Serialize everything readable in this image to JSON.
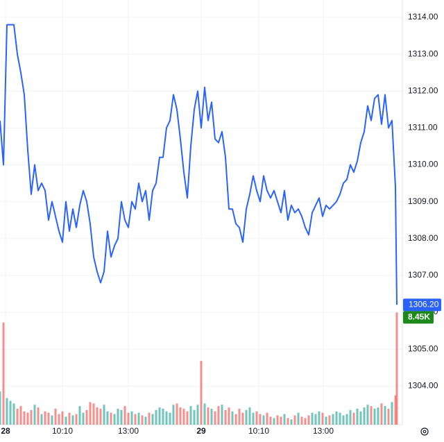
{
  "chart_data": {
    "type": "line",
    "x": [
      0,
      1,
      2,
      3,
      4,
      5,
      6,
      7,
      8,
      9,
      10,
      11,
      12,
      13,
      14,
      15,
      16,
      17,
      18,
      19,
      20,
      21,
      22,
      23,
      24,
      25,
      26,
      27,
      28,
      29,
      30,
      31,
      32,
      33,
      34,
      35,
      36,
      37,
      38,
      39,
      40,
      41,
      42,
      43,
      44,
      45,
      46,
      47,
      48,
      49,
      50,
      51,
      52,
      53,
      54,
      55,
      56,
      57,
      58,
      59,
      60,
      61,
      62,
      63,
      64,
      65,
      66,
      67,
      68,
      69,
      70,
      71,
      72,
      73,
      74,
      75,
      76,
      77,
      78,
      79,
      80,
      81,
      82,
      83,
      84,
      85,
      86,
      87,
      88,
      89,
      90,
      91,
      92,
      93,
      94,
      95,
      96,
      97,
      98,
      99,
      100,
      101,
      102,
      103,
      104,
      105,
      106,
      107,
      108,
      109,
      110,
      111,
      112,
      113,
      114,
      114.4
    ],
    "series": [
      {
        "name": "Price",
        "color": "#2962ff",
        "values": [
          1311.2,
          1310.0,
          1313.8,
          1313.8,
          1313.8,
          1313.0,
          1312.5,
          1311.9,
          1310.4,
          1309.2,
          1310.0,
          1309.3,
          1309.5,
          1309.3,
          1308.5,
          1309.0,
          1308.6,
          1308.2,
          1307.9,
          1309.0,
          1308.2,
          1308.8,
          1308.3,
          1308.9,
          1309.3,
          1309.0,
          1308.4,
          1307.5,
          1307.1,
          1306.8,
          1307.1,
          1308.2,
          1307.5,
          1307.8,
          1308.0,
          1309.0,
          1308.5,
          1308.3,
          1309.0,
          1308.8,
          1309.5,
          1309.0,
          1309.3,
          1308.5,
          1309.3,
          1309.5,
          1310.2,
          1310.2,
          1311.0,
          1311.2,
          1311.9,
          1311.5,
          1310.7,
          1309.8,
          1309.1,
          1310.5,
          1311.5,
          1312.0,
          1311.0,
          1312.1,
          1311.2,
          1311.7,
          1310.7,
          1310.6,
          1310.9,
          1310.2,
          1308.8,
          1308.8,
          1308.4,
          1308.3,
          1307.9,
          1308.8,
          1309.2,
          1309.7,
          1309.3,
          1309.0,
          1309.7,
          1309.3,
          1309.1,
          1309.3,
          1309.0,
          1308.7,
          1309.3,
          1308.5,
          1308.9,
          1308.7,
          1308.8,
          1308.6,
          1308.3,
          1308.1,
          1308.7,
          1308.9,
          1309.1,
          1308.6,
          1308.9,
          1308.8,
          1308.9,
          1309.0,
          1309.2,
          1309.5,
          1309.6,
          1310.0,
          1309.8,
          1310.1,
          1310.6,
          1310.9,
          1311.6,
          1311.2,
          1311.8,
          1311.9,
          1311.1,
          1311.9,
          1311.0,
          1311.2,
          1309.4,
          1306.2
        ]
      },
      {
        "name": "Volume",
        "axis": "y2",
        "values": [
          2.5,
          7.7,
          2.0,
          1.8,
          1.6,
          1.2,
          1.4,
          1.0,
          0.9,
          1.1,
          1.5,
          1.3,
          0.8,
          1.0,
          0.9,
          0.7,
          1.2,
          0.8,
          1.0,
          0.6,
          0.9,
          0.7,
          0.8,
          1.4,
          0.9,
          1.1,
          1.7,
          1.6,
          1.3,
          1.2,
          1.5,
          1.0,
          0.9,
          0.8,
          1.2,
          1.1,
          1.4,
          0.9,
          1.0,
          0.8,
          0.9,
          0.7,
          0.6,
          0.9,
          0.8,
          1.1,
          1.3,
          1.2,
          1.0,
          0.9,
          1.5,
          1.6,
          1.3,
          1.2,
          1.0,
          1.4,
          1.1,
          1.5,
          4.8,
          1.6,
          1.3,
          1.2,
          1.0,
          1.4,
          1.5,
          1.1,
          1.3,
          1.0,
          0.8,
          1.2,
          0.9,
          1.1,
          1.3,
          0.9,
          1.0,
          0.8,
          0.7,
          0.9,
          0.6,
          0.5,
          0.7,
          0.6,
          0.8,
          0.5,
          0.4,
          0.7,
          0.9,
          0.6,
          0.5,
          0.7,
          0.9,
          0.8,
          1.0,
          0.9,
          0.6,
          0.7,
          0.8,
          1.0,
          0.9,
          0.7,
          0.8,
          1.1,
          0.9,
          1.2,
          1.0,
          1.3,
          1.5,
          1.4,
          1.2,
          1.3,
          1.6,
          1.4,
          1.2,
          1.7,
          2.2,
          8.45
        ]
      }
    ],
    "xlim": [
      0,
      115
    ],
    "xticks": [
      {
        "value": 1.6,
        "label": "28"
      },
      {
        "value": 18,
        "label": "10:10"
      },
      {
        "value": 37,
        "label": "13:00"
      },
      {
        "value": 58,
        "label": "29"
      },
      {
        "value": 74.6,
        "label": "10:10"
      },
      {
        "value": 93.2,
        "label": "13:00"
      }
    ],
    "ylim": [
      1302.95,
      1314.47
    ],
    "yticks": [
      {
        "value": 1304,
        "label": "1304.00"
      },
      {
        "value": 1305,
        "label": "1305.00"
      },
      {
        "value": 1306,
        "label": "1306.00"
      },
      {
        "value": 1307,
        "label": "1307.00"
      },
      {
        "value": 1308,
        "label": "1308.00"
      },
      {
        "value": 1309,
        "label": "1309.00"
      },
      {
        "value": 1310,
        "label": "1310.00"
      },
      {
        "value": 1311,
        "label": "1311.00"
      },
      {
        "value": 1312,
        "label": "1312.00"
      },
      {
        "value": 1313,
        "label": "1313.00"
      },
      {
        "value": 1314,
        "label": "1314.00"
      }
    ],
    "y2lim": [
      0,
      32
    ],
    "volume_up_color": "#26a69a",
    "volume_down_color": "#ef5350",
    "last_price_label": "1306.20",
    "last_volume_label": "8.45K",
    "volume_label_color": "#1b8a1b",
    "grid": true
  }
}
